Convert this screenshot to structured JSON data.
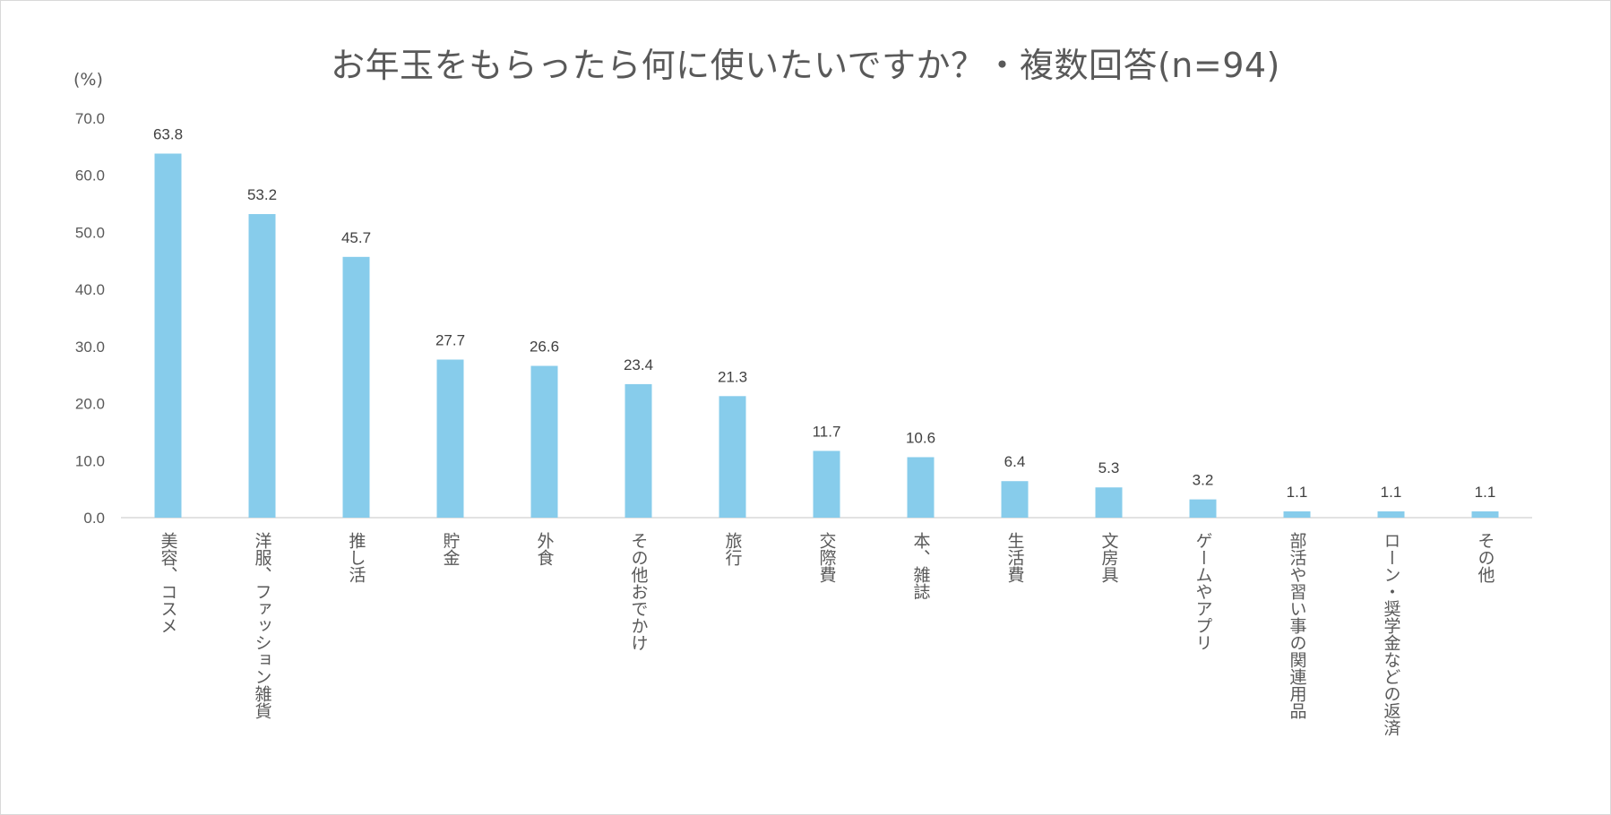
{
  "chart_data": {
    "type": "bar",
    "title": "お年玉をもらったら何に使いたいですか？・複数回答(n=94)",
    "ylabel": "(%)",
    "xlabel": "",
    "ylim": [
      0,
      70
    ],
    "yticks": [
      "0.0",
      "10.0",
      "20.0",
      "30.0",
      "40.0",
      "50.0",
      "60.0",
      "70.0"
    ],
    "grid": false,
    "legend": "none",
    "bar_color": "#87CCEB",
    "categories": [
      "美容、コスメ",
      "洋服、ファッション雑貨",
      "推し活",
      "貯金",
      "外食",
      "その他おでかけ",
      "旅行",
      "交際費",
      "本、雑誌",
      "生活費",
      "文房具",
      "ゲームやアプリ",
      "部活や習い事の関連用品",
      "ローン・奨学金などの返済",
      "その他"
    ],
    "values": [
      63.8,
      53.2,
      45.7,
      27.7,
      26.6,
      23.4,
      21.3,
      11.7,
      10.6,
      6.4,
      5.3,
      3.2,
      1.1,
      1.1,
      1.1
    ],
    "value_labels": [
      "63.8",
      "53.2",
      "45.7",
      "27.7",
      "26.6",
      "23.4",
      "21.3",
      "11.7",
      "10.6",
      "6.4",
      "5.3",
      "3.2",
      "1.1",
      "1.1",
      "1.1"
    ]
  }
}
